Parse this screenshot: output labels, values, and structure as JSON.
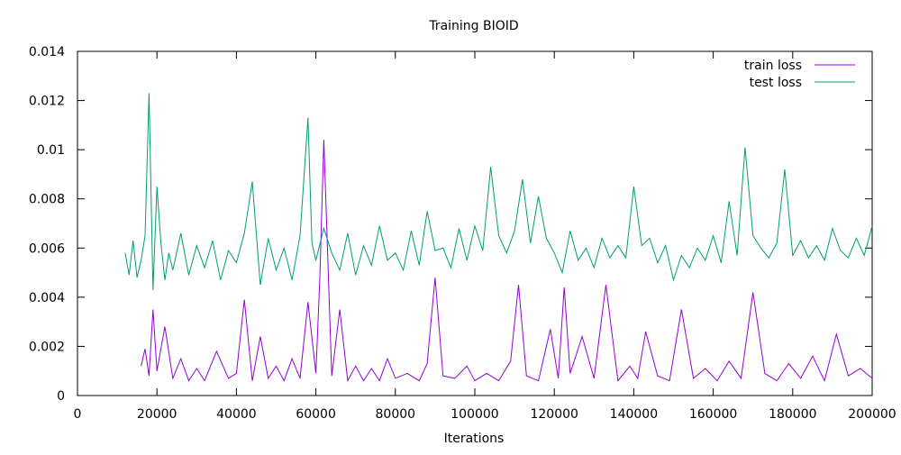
{
  "chart_data": {
    "type": "line",
    "title": "Training BIOID",
    "xlabel": "Iterations",
    "ylabel": "",
    "xlim": [
      0,
      200000
    ],
    "ylim": [
      0,
      0.014
    ],
    "xticks": [
      0,
      20000,
      40000,
      60000,
      80000,
      100000,
      120000,
      140000,
      160000,
      180000,
      200000
    ],
    "yticks": [
      0,
      0.002,
      0.004,
      0.006,
      0.008,
      0.01,
      0.012,
      0.014
    ],
    "xtick_labels": [
      "0",
      "20000",
      "40000",
      "60000",
      "80000",
      "100000",
      "120000",
      "140000",
      "160000",
      "180000",
      "200000"
    ],
    "ytick_labels": [
      "0",
      "0.002",
      "0.004",
      "0.006",
      "0.008",
      "0.01",
      "0.012",
      "0.014"
    ],
    "grid": false,
    "legend": "top-right",
    "series": [
      {
        "name": "train loss",
        "color": "#9400d3",
        "x": [
          16000,
          17000,
          18000,
          19000,
          20000,
          22000,
          24000,
          26000,
          28000,
          30000,
          32000,
          35000,
          38000,
          40000,
          42000,
          44000,
          46000,
          48000,
          50000,
          52000,
          54000,
          56000,
          58000,
          60000,
          61000,
          62000,
          64000,
          66000,
          68000,
          70000,
          72000,
          74000,
          76000,
          78000,
          80000,
          83000,
          86000,
          88000,
          90000,
          92000,
          95000,
          98000,
          100000,
          103000,
          106000,
          109000,
          111000,
          113000,
          116000,
          119000,
          121000,
          122500,
          124000,
          127000,
          130000,
          133000,
          136000,
          139000,
          141000,
          143000,
          146000,
          149000,
          152000,
          155000,
          158000,
          161000,
          164000,
          167000,
          170000,
          173000,
          176000,
          179000,
          182000,
          185000,
          188000,
          191000,
          194000,
          197000,
          200000
        ],
        "y": [
          0.0012,
          0.0019,
          0.0008,
          0.0035,
          0.001,
          0.0028,
          0.0007,
          0.0015,
          0.0006,
          0.0011,
          0.0006,
          0.0018,
          0.0007,
          0.0009,
          0.0039,
          0.0006,
          0.0024,
          0.0007,
          0.0012,
          0.0006,
          0.0015,
          0.0007,
          0.0038,
          0.0009,
          0.0048,
          0.0104,
          0.0008,
          0.0035,
          0.0006,
          0.0012,
          0.0006,
          0.0011,
          0.0006,
          0.0015,
          0.0007,
          0.0009,
          0.0006,
          0.0013,
          0.0048,
          0.0008,
          0.0007,
          0.0012,
          0.0006,
          0.0009,
          0.0006,
          0.0014,
          0.0045,
          0.0008,
          0.0006,
          0.0027,
          0.0007,
          0.0044,
          0.0009,
          0.0024,
          0.0007,
          0.0045,
          0.0006,
          0.0012,
          0.0007,
          0.0026,
          0.0008,
          0.0006,
          0.0035,
          0.0007,
          0.0011,
          0.0006,
          0.0014,
          0.0007,
          0.0042,
          0.0009,
          0.0006,
          0.0013,
          0.0007,
          0.0016,
          0.0006,
          0.0025,
          0.0008,
          0.0011,
          0.0007
        ]
      },
      {
        "name": "test loss",
        "color": "#009e73",
        "x": [
          12000,
          13000,
          14000,
          15000,
          16000,
          17000,
          18000,
          19000,
          20000,
          21000,
          22000,
          23000,
          24000,
          26000,
          28000,
          30000,
          32000,
          34000,
          36000,
          38000,
          40000,
          42000,
          44000,
          46000,
          48000,
          50000,
          52000,
          54000,
          56000,
          58000,
          59000,
          60000,
          62000,
          64000,
          66000,
          68000,
          70000,
          72000,
          74000,
          76000,
          78000,
          80000,
          82000,
          84000,
          86000,
          88000,
          90000,
          92000,
          94000,
          96000,
          98000,
          100000,
          102000,
          104000,
          106000,
          108000,
          110000,
          112000,
          114000,
          116000,
          118000,
          120000,
          122000,
          124000,
          126000,
          128000,
          130000,
          132000,
          134000,
          136000,
          138000,
          140000,
          142000,
          144000,
          146000,
          148000,
          150000,
          152000,
          154000,
          156000,
          158000,
          160000,
          162000,
          164000,
          166000,
          168000,
          170000,
          172000,
          174000,
          176000,
          178000,
          180000,
          182000,
          184000,
          186000,
          188000,
          190000,
          192000,
          194000,
          196000,
          198000,
          200000
        ],
        "y": [
          0.0058,
          0.0049,
          0.0063,
          0.0048,
          0.0055,
          0.0065,
          0.0123,
          0.0043,
          0.0085,
          0.0062,
          0.0047,
          0.0058,
          0.0051,
          0.0066,
          0.0049,
          0.0061,
          0.0052,
          0.0063,
          0.0047,
          0.0059,
          0.0054,
          0.0066,
          0.0087,
          0.0045,
          0.0064,
          0.0051,
          0.006,
          0.0047,
          0.0065,
          0.0113,
          0.0062,
          0.0055,
          0.0068,
          0.0058,
          0.0051,
          0.0066,
          0.0049,
          0.0061,
          0.0053,
          0.0069,
          0.0055,
          0.0058,
          0.0051,
          0.0067,
          0.0053,
          0.0075,
          0.0059,
          0.006,
          0.0052,
          0.0068,
          0.0055,
          0.0069,
          0.0059,
          0.0093,
          0.0065,
          0.0058,
          0.0067,
          0.0088,
          0.0062,
          0.0081,
          0.0064,
          0.0058,
          0.005,
          0.0067,
          0.0055,
          0.006,
          0.0052,
          0.0064,
          0.0056,
          0.0061,
          0.0056,
          0.0085,
          0.0061,
          0.0064,
          0.0054,
          0.0061,
          0.0047,
          0.0057,
          0.0052,
          0.006,
          0.0055,
          0.0065,
          0.0054,
          0.0079,
          0.0057,
          0.0101,
          0.0065,
          0.006,
          0.0056,
          0.0062,
          0.0092,
          0.0057,
          0.0063,
          0.0056,
          0.0061,
          0.0055,
          0.0068,
          0.0059,
          0.0056,
          0.0064,
          0.0057,
          0.0069
        ]
      }
    ]
  }
}
